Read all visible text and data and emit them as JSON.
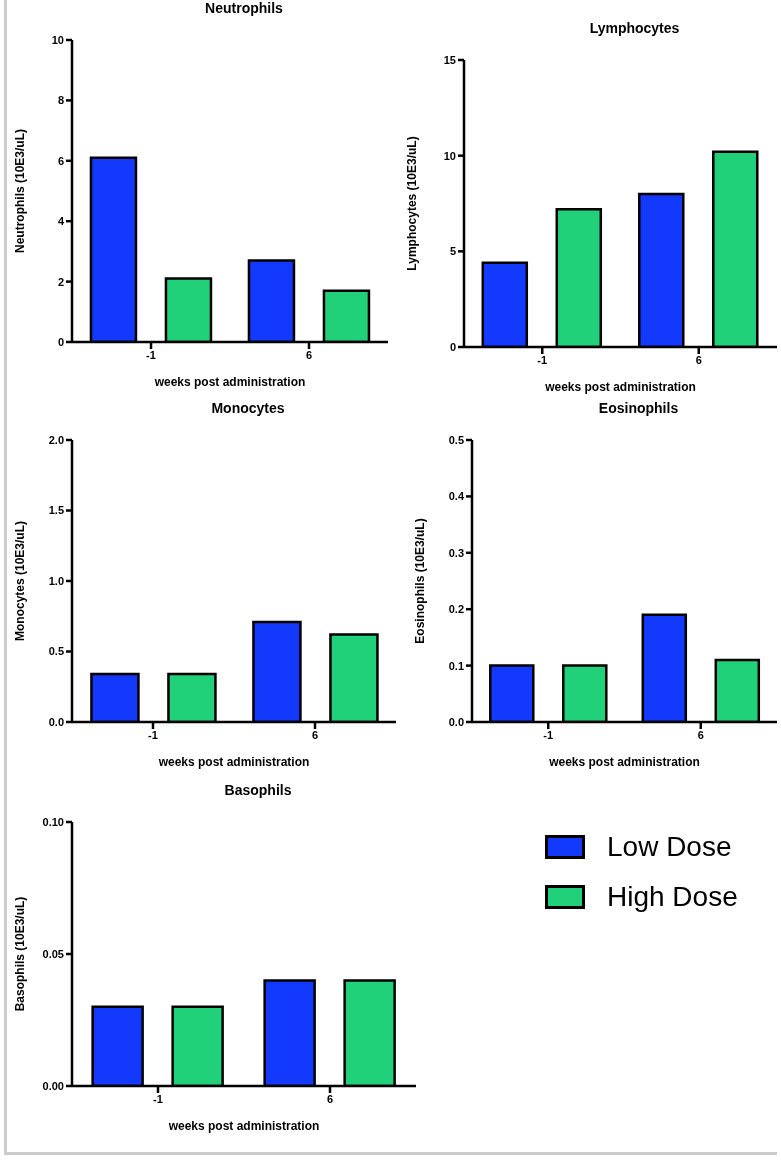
{
  "chart_data": [
    {
      "type": "bar",
      "title": "Neutrophils",
      "xlabel": "weeks post administration",
      "ylabel": "Neutrophils (10E3/uL)",
      "categories": [
        "-1",
        "6"
      ],
      "ylim": [
        0,
        10
      ],
      "yticks": [
        0,
        2,
        4,
        6,
        8,
        10
      ],
      "grid": false,
      "legend": false,
      "series": [
        {
          "color": "#1339fc",
          "values": [
            6.1,
            2.7
          ]
        },
        {
          "color": "#21d17a",
          "values": [
            2.1,
            1.7
          ]
        }
      ]
    },
    {
      "type": "bar",
      "title": "Lymphocytes",
      "xlabel": "weeks post administration",
      "ylabel": "Lymphocytes (10E3/uL)",
      "categories": [
        "-1",
        "6"
      ],
      "ylim": [
        0,
        15
      ],
      "yticks": [
        0,
        5,
        10,
        15
      ],
      "grid": false,
      "legend": false,
      "series": [
        {
          "color": "#1339fc",
          "values": [
            4.4,
            8.0
          ]
        },
        {
          "color": "#21d17a",
          "values": [
            7.2,
            10.2
          ]
        }
      ]
    },
    {
      "type": "bar",
      "title": "Monocytes",
      "xlabel": "weeks post administration",
      "ylabel": "Monocytes (10E3/uL)",
      "categories": [
        "-1",
        "6"
      ],
      "ylim": [
        0,
        2
      ],
      "yticks": [
        {
          "value": 0,
          "label": "0.0"
        },
        0.5,
        {
          "value": 1,
          "label": "1.0"
        },
        1.5,
        {
          "value": 2,
          "label": "2.0"
        }
      ],
      "grid": false,
      "legend": false,
      "series": [
        {
          "color": "#1339fc",
          "values": [
            0.34,
            0.71
          ]
        },
        {
          "color": "#21d17a",
          "values": [
            0.34,
            0.62
          ]
        }
      ]
    },
    {
      "type": "bar",
      "title": "Eosinophils",
      "xlabel": "weeks post administration",
      "ylabel": "Eosinophils (10E3/uL)",
      "categories": [
        "-1",
        "6"
      ],
      "ylim": [
        0,
        0.5
      ],
      "yticks": [
        {
          "value": 0,
          "label": "0.0"
        },
        0.1,
        0.2,
        0.3,
        0.4,
        0.5
      ],
      "grid": false,
      "legend": false,
      "series": [
        {
          "color": "#1339fc",
          "values": [
            0.1,
            0.19
          ]
        },
        {
          "color": "#21d17a",
          "values": [
            0.1,
            0.11
          ]
        }
      ]
    },
    {
      "type": "bar",
      "title": "Basophils",
      "xlabel": "weeks post administration",
      "ylabel": "Basophils (10E3/uL)",
      "categories": [
        "-1",
        "6"
      ],
      "ylim": [
        0,
        0.1
      ],
      "yticks": [
        {
          "value": 0,
          "label": "0.00"
        },
        {
          "value": 0.05,
          "label": "0.05"
        },
        {
          "value": 0.1,
          "label": "0.10"
        }
      ],
      "grid": false,
      "legend": "right",
      "series": [
        {
          "name": "Low Dose",
          "color": "#1339fc",
          "values": [
            0.03,
            0.04
          ]
        },
        {
          "name": "High Dose",
          "color": "#21d17a",
          "values": [
            0.03,
            0.04
          ]
        }
      ]
    }
  ]
}
